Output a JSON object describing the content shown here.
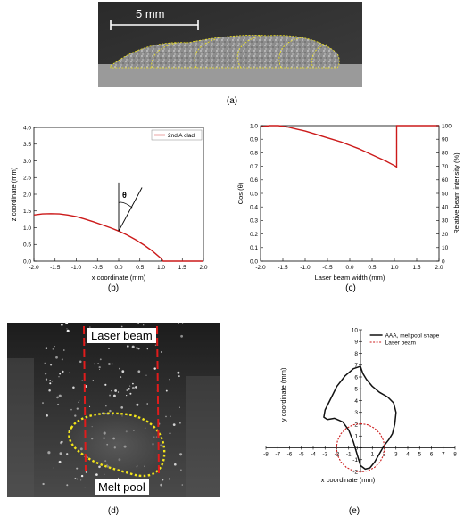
{
  "figure": {
    "panels": [
      {
        "caption": "(a)",
        "scale_bar": "5 mm"
      },
      {
        "caption": "(b)"
      },
      {
        "caption": "(c)"
      },
      {
        "caption": "(d)",
        "labels": [
          "Laser beam",
          "Melt pool"
        ]
      },
      {
        "caption": "(e)"
      }
    ],
    "colors": {
      "red": "#cc1a1a",
      "yellow": "#f2e51a",
      "dark": "#111111"
    }
  },
  "chart_data": [
    {
      "type": "line",
      "panel": "(b)",
      "xlabel": "x coordinate (mm)",
      "ylabel": "z coordinate (mm)",
      "xlim": [
        -2.0,
        2.0
      ],
      "ylim": [
        0.0,
        4.0
      ],
      "xticks": [
        "-2.0",
        "-1.5",
        "-1.0",
        "-0.5",
        "0.0",
        "0.5",
        "1.0",
        "1.5",
        "2.0"
      ],
      "yticks": [
        "0.0",
        "0.5",
        "1.0",
        "1.5",
        "2.0",
        "2.5",
        "3.0",
        "3.5",
        "4.0"
      ],
      "legend": [
        "2nd A clad"
      ],
      "annotation": "θ",
      "series": [
        {
          "name": "2nd A clad",
          "x": [
            -2.0,
            -1.8,
            -1.6,
            -1.4,
            -1.2,
            -1.0,
            -0.8,
            -0.6,
            -0.4,
            -0.2,
            0.0,
            0.2,
            0.4,
            0.6,
            0.8,
            1.0,
            1.05,
            1.2,
            1.4,
            1.6,
            1.8,
            2.0
          ],
          "y": [
            1.38,
            1.41,
            1.42,
            1.41,
            1.38,
            1.33,
            1.26,
            1.18,
            1.09,
            1.0,
            0.9,
            0.78,
            0.64,
            0.48,
            0.3,
            0.08,
            0.0,
            0.0,
            0.0,
            0.0,
            0.0,
            0.0
          ]
        }
      ]
    },
    {
      "type": "line",
      "panel": "(c)",
      "xlabel": "Laser beam width (mm)",
      "ylabel": "Cos (θ)",
      "y2label": "Relative beam intensity (%)",
      "xlim": [
        -2.0,
        2.0
      ],
      "ylim": [
        0.0,
        1.0
      ],
      "y2lim": [
        0,
        100
      ],
      "xticks": [
        "-2.0",
        "-1.5",
        "-1.0",
        "-0.5",
        "0.0",
        "0.5",
        "1.0",
        "1.5",
        "2.0"
      ],
      "yticks": [
        "0.0",
        "0.1",
        "0.2",
        "0.3",
        "0.4",
        "0.5",
        "0.6",
        "0.7",
        "0.8",
        "0.9",
        "1.0"
      ],
      "y2ticks": [
        "0",
        "10",
        "20",
        "30",
        "40",
        "50",
        "60",
        "70",
        "80",
        "90",
        "100"
      ],
      "series": [
        {
          "x": [
            -2.0,
            -1.8,
            -1.6,
            -1.4,
            -1.2,
            -1.0,
            -0.8,
            -0.6,
            -0.4,
            -0.2,
            0.0,
            0.2,
            0.4,
            0.6,
            0.8,
            1.0,
            1.05,
            1.05,
            1.2,
            1.5,
            2.0
          ],
          "y": [
            0.99,
            1.0,
            1.0,
            0.99,
            0.975,
            0.96,
            0.94,
            0.92,
            0.9,
            0.88,
            0.855,
            0.83,
            0.8,
            0.77,
            0.74,
            0.705,
            0.695,
            1.0,
            1.0,
            1.0,
            1.0
          ]
        }
      ]
    },
    {
      "type": "line",
      "panel": "(e)",
      "xlabel": "x coordinate (mm)",
      "ylabel": "y coordinate (mm)",
      "xlim": [
        -8,
        8
      ],
      "ylim": [
        -2,
        10
      ],
      "xticks": [
        "-8",
        "-7",
        "-6",
        "-5",
        "-4",
        "-3",
        "-2",
        "-1",
        "0",
        "1",
        "2",
        "3",
        "4",
        "5",
        "6",
        "7",
        "8"
      ],
      "yticks": [
        "-2",
        "-1",
        "0",
        "1",
        "2",
        "3",
        "4",
        "5",
        "6",
        "7",
        "8",
        "9",
        "10"
      ],
      "legend": [
        "AAA, meltpool shape",
        "Laser beam"
      ],
      "series": [
        {
          "name": "AAA, meltpool shape",
          "x": [
            0,
            -0.6,
            -1.3,
            -2.0,
            -2.6,
            -3.0,
            -3.1,
            -2.8,
            -2.2,
            -1.5,
            -1.0,
            -0.6,
            -0.3,
            0.0,
            0.4,
            0.8,
            1.2,
            1.6,
            2.0,
            2.4,
            2.7,
            2.9,
            3.0,
            2.8,
            2.3,
            1.6,
            1.0,
            0.5,
            0.2,
            0.1,
            0.0
          ],
          "y": [
            6.9,
            6.7,
            6.1,
            5.2,
            4.0,
            3.2,
            2.6,
            2.4,
            2.5,
            2.2,
            1.5,
            0.5,
            -0.5,
            -1.5,
            -1.8,
            -1.7,
            -1.2,
            -0.5,
            0.2,
            0.7,
            1.2,
            2.0,
            3.0,
            3.8,
            4.3,
            4.7,
            5.2,
            5.8,
            6.3,
            6.6,
            6.9
          ]
        },
        {
          "name": "Laser beam",
          "x": [
            0.0,
            0.63,
            1.2,
            1.65,
            1.94,
            2.04,
            1.94,
            1.65,
            1.2,
            0.63,
            0.0,
            -0.63,
            -1.2,
            -1.65,
            -1.94,
            -2.04,
            -1.94,
            -1.65,
            -1.2,
            -0.63,
            0.0
          ],
          "y": [
            2.05,
            1.95,
            1.65,
            1.2,
            0.63,
            0.0,
            -0.63,
            -1.2,
            -1.65,
            -1.95,
            -2.05,
            -1.95,
            -1.65,
            -1.2,
            -0.63,
            0.0,
            0.63,
            1.2,
            1.65,
            1.95,
            2.05
          ]
        }
      ]
    }
  ]
}
